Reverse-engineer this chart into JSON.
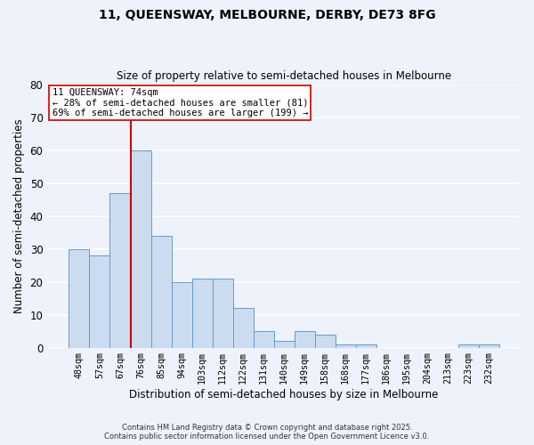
{
  "title": "11, QUEENSWAY, MELBOURNE, DERBY, DE73 8FG",
  "subtitle": "Size of property relative to semi-detached houses in Melbourne",
  "xlabel": "Distribution of semi-detached houses by size in Melbourne",
  "ylabel": "Number of semi-detached properties",
  "bar_color": "#ccdcf0",
  "bar_edge_color": "#6699cc",
  "background_color": "#eef2fb",
  "grid_color": "#ffffff",
  "categories": [
    "48sqm",
    "57sqm",
    "67sqm",
    "76sqm",
    "85sqm",
    "94sqm",
    "103sqm",
    "112sqm",
    "122sqm",
    "131sqm",
    "140sqm",
    "149sqm",
    "158sqm",
    "168sqm",
    "177sqm",
    "186sqm",
    "195sqm",
    "204sqm",
    "213sqm",
    "223sqm",
    "232sqm"
  ],
  "values": [
    30,
    28,
    47,
    60,
    34,
    20,
    21,
    21,
    12,
    5,
    2,
    5,
    4,
    1,
    1,
    0,
    0,
    0,
    0,
    1,
    1
  ],
  "ylim": [
    0,
    80
  ],
  "yticks": [
    0,
    10,
    20,
    30,
    40,
    50,
    60,
    70,
    80
  ],
  "vline_color": "#cc0000",
  "annotation_title": "11 QUEENSWAY: 74sqm",
  "annotation_line1": "← 28% of semi-detached houses are smaller (81)",
  "annotation_line2": "69% of semi-detached houses are larger (199) →",
  "annotation_box_color": "#ffffff",
  "annotation_box_edge": "#cc0000",
  "footer1": "Contains HM Land Registry data © Crown copyright and database right 2025.",
  "footer2": "Contains public sector information licensed under the Open Government Licence v3.0."
}
